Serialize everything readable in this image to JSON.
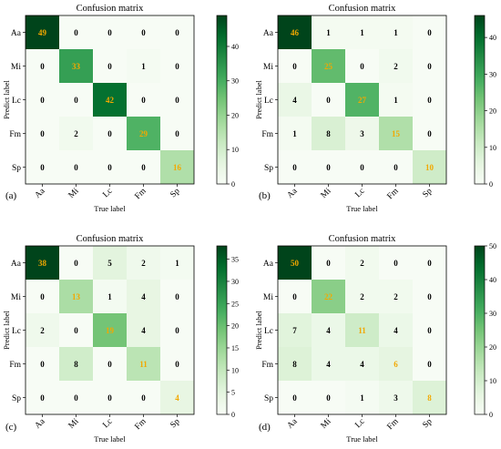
{
  "chart_data": [
    {
      "type": "heatmap",
      "panel_label": "(a)",
      "title": "Confusion matrix",
      "xlabel": "True label",
      "ylabel": "Predict label",
      "x_categories": [
        "Aa",
        "Mi",
        "Lc",
        "Fm",
        "Sp"
      ],
      "y_categories": [
        "Aa",
        "Mi",
        "Lc",
        "Fm",
        "Sp"
      ],
      "values": [
        [
          49,
          0,
          0,
          0,
          0
        ],
        [
          0,
          33,
          0,
          1,
          0
        ],
        [
          0,
          0,
          42,
          0,
          0
        ],
        [
          0,
          2,
          0,
          29,
          0
        ],
        [
          0,
          0,
          0,
          0,
          16
        ]
      ],
      "colorbar": {
        "min": 0,
        "max": 49,
        "ticks": [
          0,
          10,
          20,
          30,
          40
        ]
      }
    },
    {
      "type": "heatmap",
      "panel_label": "(b)",
      "title": "Confusion matrix",
      "xlabel": "True label",
      "ylabel": "Predict label",
      "x_categories": [
        "Aa",
        "Mi",
        "Lc",
        "Fm",
        "Sp"
      ],
      "y_categories": [
        "Aa",
        "Mi",
        "Lc",
        "Fm",
        "Sp"
      ],
      "values": [
        [
          46,
          1,
          1,
          1,
          0
        ],
        [
          0,
          25,
          0,
          2,
          0
        ],
        [
          4,
          0,
          27,
          1,
          0
        ],
        [
          1,
          8,
          3,
          15,
          0
        ],
        [
          0,
          0,
          0,
          0,
          10
        ]
      ],
      "colorbar": {
        "min": 0,
        "max": 46,
        "ticks": [
          0,
          10,
          20,
          30,
          40
        ]
      }
    },
    {
      "type": "heatmap",
      "panel_label": "(c)",
      "title": "Confusion matrix",
      "xlabel": "True label",
      "ylabel": "Predict label",
      "x_categories": [
        "Aa",
        "Mi",
        "Lc",
        "Fm",
        "Sp"
      ],
      "y_categories": [
        "Aa",
        "Mi",
        "Lc",
        "Fm",
        "Sp"
      ],
      "values": [
        [
          38,
          0,
          5,
          2,
          1
        ],
        [
          0,
          13,
          1,
          4,
          0
        ],
        [
          2,
          0,
          19,
          4,
          0
        ],
        [
          0,
          8,
          0,
          11,
          0
        ],
        [
          0,
          0,
          0,
          0,
          4
        ]
      ],
      "colorbar": {
        "min": 0,
        "max": 38,
        "ticks": [
          0,
          5,
          10,
          15,
          20,
          25,
          30,
          35
        ]
      }
    },
    {
      "type": "heatmap",
      "panel_label": "(d)",
      "title": "Confusion matrix",
      "xlabel": "True label",
      "ylabel": "Predict label",
      "x_categories": [
        "Aa",
        "Mi",
        "Lc",
        "Fm",
        "Sp"
      ],
      "y_categories": [
        "Aa",
        "Mi",
        "Lc",
        "Fm",
        "Sp"
      ],
      "values": [
        [
          50,
          0,
          2,
          0,
          0
        ],
        [
          0,
          22,
          2,
          2,
          0
        ],
        [
          7,
          4,
          11,
          4,
          0
        ],
        [
          8,
          4,
          4,
          6,
          0
        ],
        [
          0,
          0,
          1,
          3,
          8
        ]
      ],
      "colorbar": {
        "min": 0,
        "max": 50,
        "ticks": [
          0,
          10,
          20,
          30,
          40,
          50
        ]
      }
    }
  ],
  "colors": {
    "low": "#f7fcf5",
    "high": "#00441b",
    "diagonal_text": "#f2a800",
    "offdiag_text": "#000000"
  }
}
